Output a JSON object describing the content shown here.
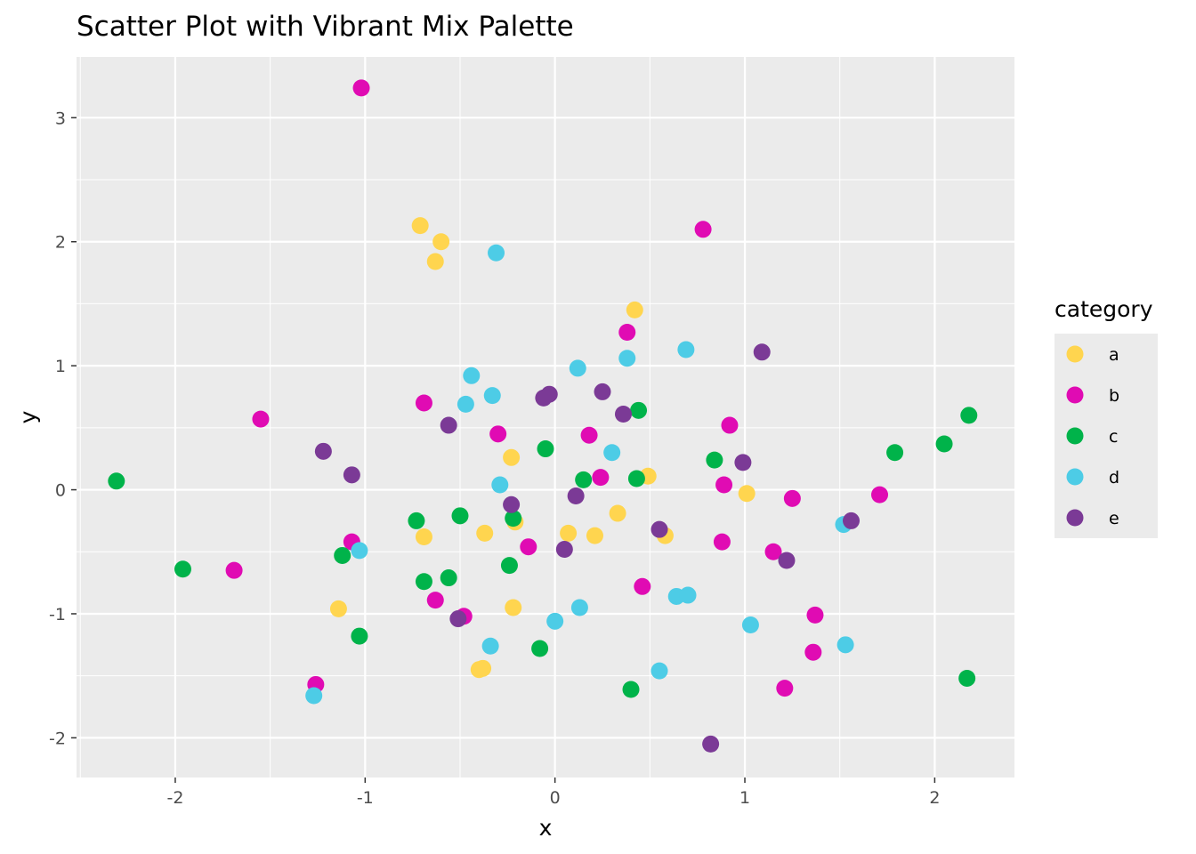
{
  "chart_data": {
    "type": "scatter",
    "title": "Scatter Plot with Vibrant Mix Palette",
    "xlabel": "x",
    "ylabel": "y",
    "xlim": [
      -2.52,
      2.42
    ],
    "ylim": [
      -2.32,
      3.49
    ],
    "x_ticks": [
      -2,
      -1,
      0,
      1,
      2
    ],
    "x_tick_labels": [
      "-2",
      "-1",
      "0",
      "1",
      "2"
    ],
    "y_ticks": [
      -2,
      -1,
      0,
      1,
      2,
      3
    ],
    "y_tick_labels": [
      "-2",
      "-1",
      "0",
      "1",
      "2",
      "3"
    ],
    "grid": true,
    "legend": {
      "title": "category",
      "position": "right"
    },
    "series": [
      {
        "name": "a",
        "color": "#FFD54F",
        "x": [
          -0.71,
          -0.6,
          -0.63,
          0.42,
          -0.69,
          -0.37,
          -0.23,
          -0.21,
          -1.14,
          -0.22,
          -0.38,
          -0.4,
          0.07,
          0.21,
          0.33,
          0.49,
          0.58,
          1.01
        ],
        "y": [
          2.13,
          2.0,
          1.84,
          1.45,
          -0.38,
          -0.35,
          0.26,
          -0.26,
          -0.96,
          -0.95,
          -1.44,
          -1.45,
          -0.35,
          -0.37,
          -0.19,
          0.11,
          -0.37,
          -0.03
        ]
      },
      {
        "name": "b",
        "color": "#E00BB3",
        "x": [
          -1.02,
          0.78,
          0.38,
          -1.55,
          -0.69,
          -0.3,
          0.18,
          0.24,
          0.92,
          0.89,
          1.25,
          1.71,
          -1.07,
          -1.69,
          -0.14,
          -0.63,
          -0.48,
          0.46,
          0.88,
          1.15,
          1.37,
          1.36,
          1.21,
          -1.26
        ],
        "y": [
          3.24,
          2.1,
          1.27,
          0.57,
          0.7,
          0.45,
          0.44,
          0.1,
          0.52,
          0.04,
          -0.07,
          -0.04,
          -0.42,
          -0.65,
          -0.46,
          -0.89,
          -1.02,
          -0.78,
          -0.42,
          -0.5,
          -1.01,
          -1.31,
          -1.6,
          -1.57
        ]
      },
      {
        "name": "c",
        "color": "#00B34A",
        "x": [
          -2.31,
          -1.96,
          -1.12,
          -1.03,
          -0.73,
          -0.69,
          -0.56,
          -0.5,
          -0.24,
          -0.22,
          -0.08,
          -0.05,
          0.15,
          0.43,
          0.44,
          0.4,
          0.84,
          1.79,
          2.05,
          2.18,
          2.17
        ],
        "y": [
          0.07,
          -0.64,
          -0.53,
          -1.18,
          -0.25,
          -0.74,
          -0.71,
          -0.21,
          -0.61,
          -0.23,
          -1.28,
          0.33,
          0.08,
          0.09,
          0.64,
          -1.61,
          0.24,
          0.3,
          0.37,
          0.6,
          -1.52
        ]
      },
      {
        "name": "d",
        "color": "#4DCCE6",
        "x": [
          -0.31,
          -0.44,
          -0.47,
          -0.33,
          -0.29,
          0.12,
          0.3,
          0.38,
          0.69,
          -1.03,
          0.0,
          0.13,
          -0.34,
          0.55,
          0.64,
          0.7,
          1.03,
          1.52,
          1.53,
          -1.27
        ],
        "y": [
          1.91,
          0.92,
          0.69,
          0.76,
          0.04,
          0.98,
          0.3,
          1.06,
          1.13,
          -0.49,
          -1.06,
          -0.95,
          -1.26,
          -1.46,
          -0.86,
          -0.85,
          -1.09,
          -0.28,
          -1.25,
          -1.66
        ]
      },
      {
        "name": "e",
        "color": "#7B3A96",
        "x": [
          -1.22,
          -1.07,
          -0.56,
          -0.23,
          -0.06,
          -0.03,
          0.11,
          0.25,
          0.36,
          0.05,
          0.55,
          0.99,
          1.09,
          1.22,
          1.56,
          -0.51,
          0.82
        ],
        "y": [
          0.31,
          0.12,
          0.52,
          -0.12,
          0.74,
          0.77,
          -0.05,
          0.79,
          0.61,
          -0.48,
          -0.32,
          0.22,
          1.11,
          -0.57,
          -0.25,
          -1.04,
          -2.05
        ]
      }
    ]
  }
}
